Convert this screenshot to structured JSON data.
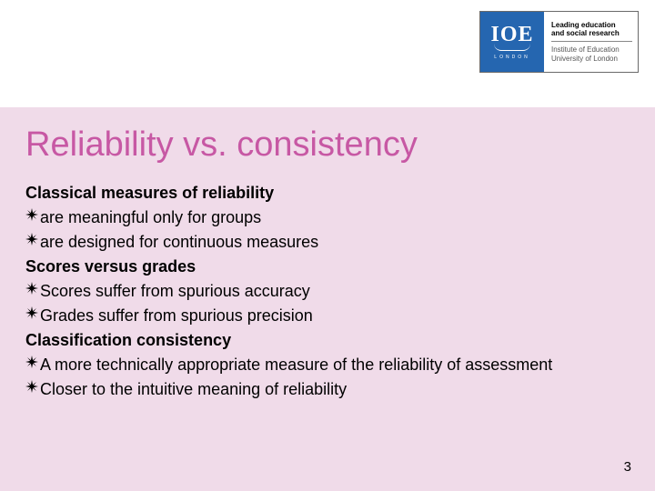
{
  "logo": {
    "mark_text": "IOE",
    "mark_city": "LONDON",
    "tagline_line1": "Leading education",
    "tagline_line2": "and social research",
    "sub_line1": "Institute of Education",
    "sub_line2": "University of London"
  },
  "title": "Reliability vs. consistency",
  "sections": [
    {
      "heading": "Classical measures of reliability",
      "bullets": [
        "are meaningful only for groups",
        "are designed for continuous measures"
      ]
    },
    {
      "heading": "Scores versus grades",
      "bullets": [
        "Scores suffer from spurious accuracy",
        "Grades suffer from spurious precision"
      ]
    },
    {
      "heading": "Classification consistency",
      "bullets": [
        "A more technically appropriate measure of the reliability of assessment",
        "Closer to the intuitive meaning of reliability"
      ]
    }
  ],
  "page_number": "3",
  "colors": {
    "background": "#f0dbe9",
    "title": "#c758a4",
    "logo_blue": "#2566b0"
  }
}
